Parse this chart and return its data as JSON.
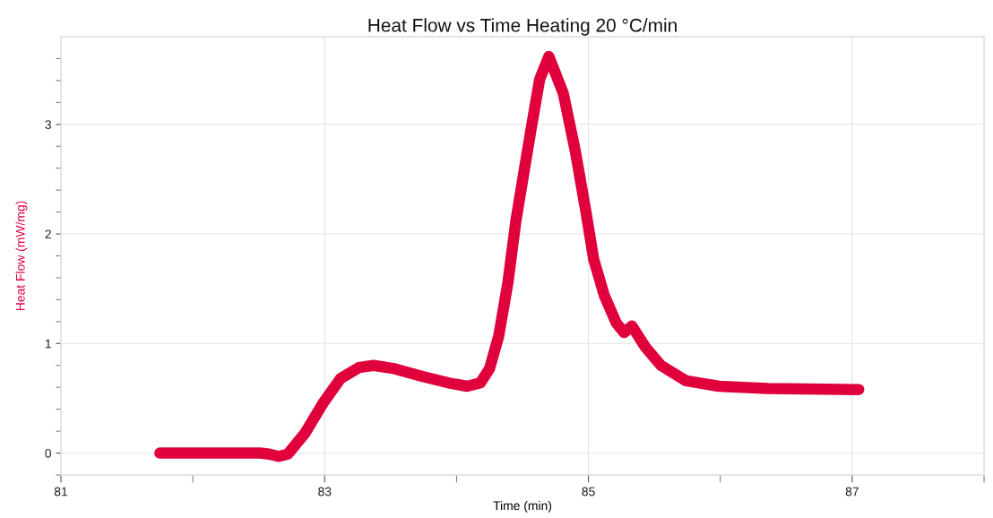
{
  "chart_data": {
    "type": "line",
    "title": "Heat Flow vs Time Heating 20 °C/min",
    "xlabel": "Time (min)",
    "ylabel": "Heat Flow (mW/mg)",
    "series": [
      {
        "color": "#e0003c",
        "x": [
          81.75,
          82.51,
          82.58,
          82.65,
          82.72,
          82.85,
          82.99,
          83.12,
          83.26,
          83.37,
          83.53,
          83.74,
          83.94,
          84.08,
          84.18,
          84.25,
          84.32,
          84.39,
          84.45,
          84.56,
          84.63,
          84.7,
          84.81,
          84.9,
          84.98,
          85.04,
          85.12,
          85.21,
          85.27,
          85.33,
          85.43,
          85.55,
          85.74,
          85.99,
          86.36,
          87.05
        ],
        "values": [
          0.0,
          0.0,
          -0.01,
          -0.03,
          -0.01,
          0.18,
          0.46,
          0.68,
          0.78,
          0.8,
          0.77,
          0.7,
          0.64,
          0.61,
          0.64,
          0.77,
          1.07,
          1.56,
          2.12,
          2.92,
          3.41,
          3.62,
          3.28,
          2.76,
          2.21,
          1.77,
          1.44,
          1.19,
          1.1,
          1.16,
          0.97,
          0.8,
          0.66,
          0.61,
          0.59,
          0.58
        ]
      }
    ],
    "xlim": [
      81,
      88
    ],
    "ylim": [
      -0.2,
      3.8
    ],
    "xticks": [
      81,
      {
        "value": 82,
        "label": null
      },
      83,
      {
        "value": 84,
        "label": null
      },
      85,
      {
        "value": 86,
        "label": null
      },
      87,
      {
        "value": 88,
        "label": null
      }
    ],
    "yticks": [
      {
        "value": -0.2,
        "label": null
      },
      0,
      {
        "value": 0.2,
        "label": null
      },
      {
        "value": 0.4,
        "label": null
      },
      {
        "value": 0.6,
        "label": null
      },
      {
        "value": 0.8,
        "label": null
      },
      1,
      {
        "value": 1.2,
        "label": null
      },
      {
        "value": 1.4,
        "label": null
      },
      {
        "value": 1.6,
        "label": null
      },
      {
        "value": 1.8,
        "label": null
      },
      2,
      {
        "value": 2.2,
        "label": null
      },
      {
        "value": 2.4,
        "label": null
      },
      {
        "value": 2.6,
        "label": null
      },
      {
        "value": 2.8,
        "label": null
      },
      3,
      {
        "value": 3.2,
        "label": null
      },
      {
        "value": 3.4,
        "label": null
      },
      {
        "value": 3.6,
        "label": null
      }
    ],
    "grid": true,
    "line_style": "solid"
  }
}
